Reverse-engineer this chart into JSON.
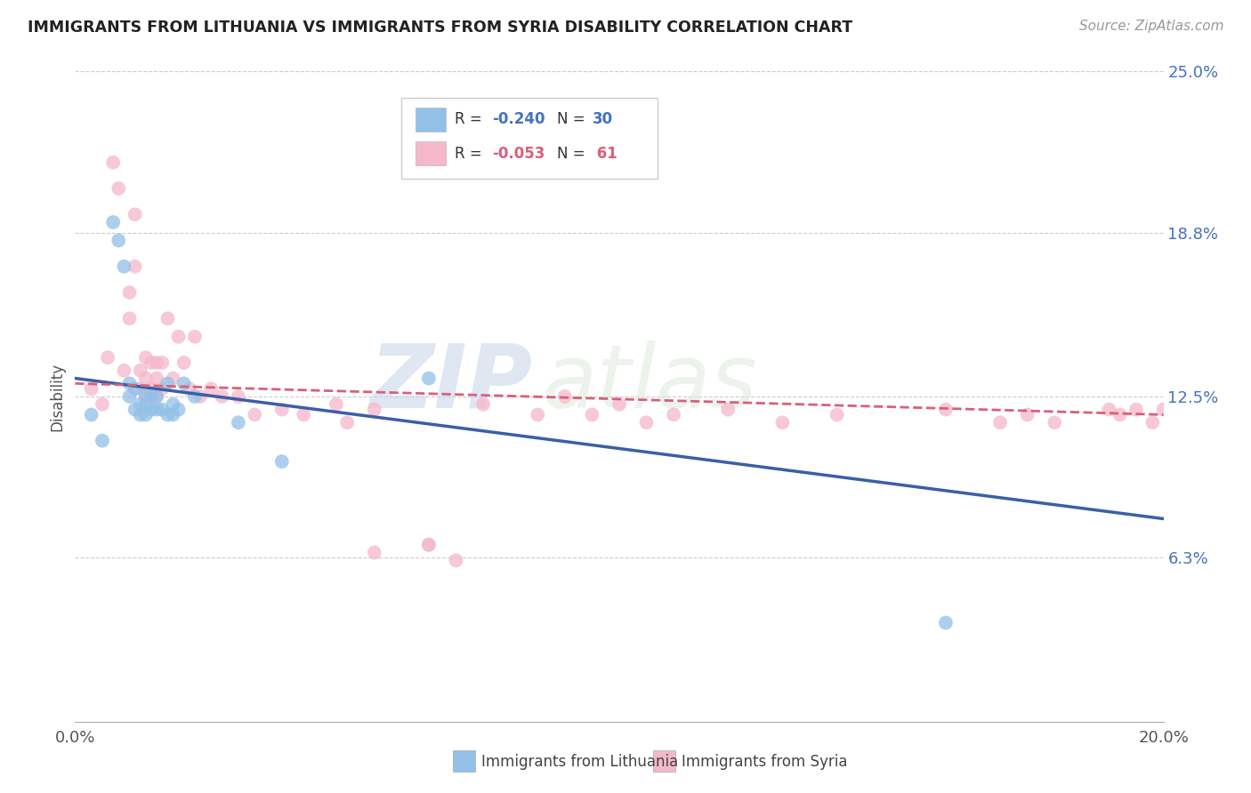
{
  "title": "IMMIGRANTS FROM LITHUANIA VS IMMIGRANTS FROM SYRIA DISABILITY CORRELATION CHART",
  "source": "Source: ZipAtlas.com",
  "ylabel": "Disability",
  "xlim": [
    0.0,
    0.2
  ],
  "ylim": [
    0.0,
    0.25
  ],
  "yticks": [
    0.063,
    0.125,
    0.188,
    0.25
  ],
  "ytick_labels": [
    "6.3%",
    "12.5%",
    "18.8%",
    "25.0%"
  ],
  "xticks": [
    0.0,
    0.025,
    0.05,
    0.075,
    0.1,
    0.125,
    0.15,
    0.175,
    0.2
  ],
  "xtick_labels": [
    "0.0%",
    "",
    "",
    "",
    "",
    "",
    "",
    "",
    "20.0%"
  ],
  "lithuania_color": "#92c0e8",
  "syria_color": "#f5b8cb",
  "trend_lithuania_color": "#3a5fa8",
  "trend_syria_color": "#d9607a",
  "watermark_zip": "ZIP",
  "watermark_atlas": "atlas",
  "lithuania_x": [
    0.003,
    0.005,
    0.007,
    0.008,
    0.009,
    0.01,
    0.01,
    0.011,
    0.011,
    0.012,
    0.012,
    0.013,
    0.013,
    0.013,
    0.014,
    0.014,
    0.015,
    0.015,
    0.016,
    0.017,
    0.017,
    0.018,
    0.018,
    0.019,
    0.02,
    0.022,
    0.03,
    0.038,
    0.065,
    0.16
  ],
  "lithuania_y": [
    0.118,
    0.108,
    0.192,
    0.185,
    0.175,
    0.13,
    0.125,
    0.128,
    0.12,
    0.122,
    0.118,
    0.126,
    0.122,
    0.118,
    0.125,
    0.12,
    0.125,
    0.12,
    0.12,
    0.13,
    0.118,
    0.122,
    0.118,
    0.12,
    0.13,
    0.125,
    0.115,
    0.1,
    0.132,
    0.038
  ],
  "syria_x": [
    0.003,
    0.005,
    0.006,
    0.007,
    0.008,
    0.009,
    0.01,
    0.01,
    0.011,
    0.011,
    0.012,
    0.012,
    0.013,
    0.013,
    0.013,
    0.014,
    0.014,
    0.015,
    0.015,
    0.015,
    0.016,
    0.016,
    0.017,
    0.018,
    0.019,
    0.02,
    0.021,
    0.022,
    0.023,
    0.025,
    0.027,
    0.03,
    0.033,
    0.038,
    0.042,
    0.048,
    0.05,
    0.055,
    0.065,
    0.075,
    0.085,
    0.09,
    0.095,
    0.1,
    0.105,
    0.11,
    0.12,
    0.13,
    0.14,
    0.16,
    0.17,
    0.175,
    0.18,
    0.19,
    0.192,
    0.195,
    0.198,
    0.2,
    0.055,
    0.065,
    0.07
  ],
  "syria_y": [
    0.128,
    0.122,
    0.14,
    0.215,
    0.205,
    0.135,
    0.165,
    0.155,
    0.195,
    0.175,
    0.135,
    0.128,
    0.14,
    0.132,
    0.125,
    0.138,
    0.128,
    0.138,
    0.132,
    0.125,
    0.138,
    0.128,
    0.155,
    0.132,
    0.148,
    0.138,
    0.128,
    0.148,
    0.125,
    0.128,
    0.125,
    0.125,
    0.118,
    0.12,
    0.118,
    0.122,
    0.115,
    0.12,
    0.068,
    0.122,
    0.118,
    0.125,
    0.118,
    0.122,
    0.115,
    0.118,
    0.12,
    0.115,
    0.118,
    0.12,
    0.115,
    0.118,
    0.115,
    0.12,
    0.118,
    0.12,
    0.115,
    0.12,
    0.065,
    0.068,
    0.062
  ],
  "trend_lith_start_x": 0.0,
  "trend_lith_start_y": 0.132,
  "trend_lith_end_x": 0.2,
  "trend_lith_end_y": 0.078,
  "trend_syria_start_x": 0.0,
  "trend_syria_start_y": 0.13,
  "trend_syria_end_x": 0.2,
  "trend_syria_end_y": 0.118
}
